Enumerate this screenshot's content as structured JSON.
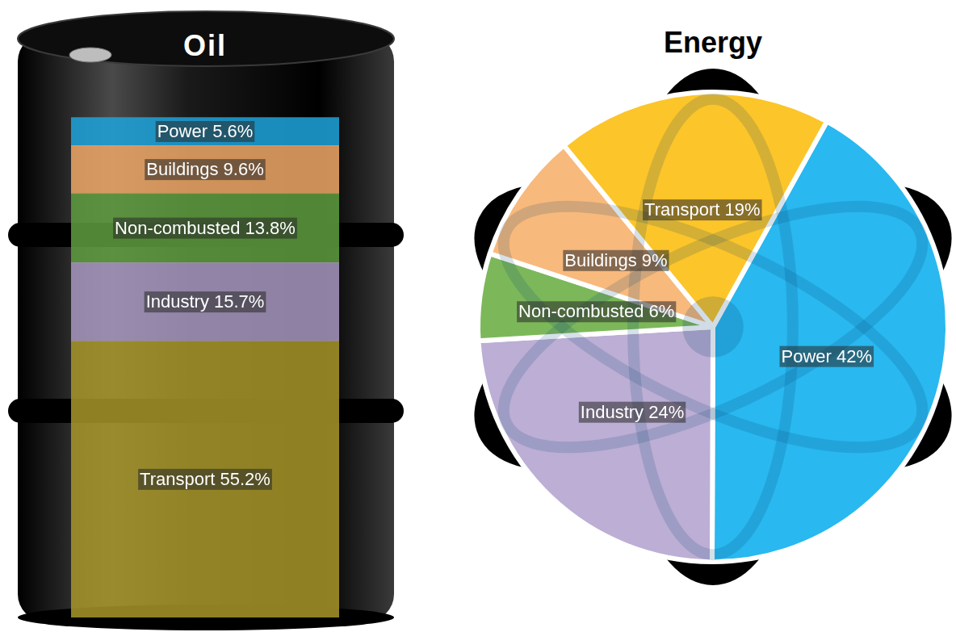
{
  "chart_data": [
    {
      "type": "bar",
      "title": "Oil",
      "categories": [
        null
      ],
      "stacked": true,
      "data_labels": true,
      "tick_labels": false,
      "grid": false,
      "ylim": [
        0,
        100
      ],
      "series": [
        {
          "name": "Transport",
          "color": "#a8962a",
          "values": [
            55.2
          ],
          "value_labels": [
            "Transport 55.2%"
          ]
        },
        {
          "name": "Industry",
          "color": "#a898c0",
          "values": [
            15.7
          ],
          "value_labels": [
            "Industry 15.7%"
          ]
        },
        {
          "name": "Non-combusted",
          "color": "#5e9e3e",
          "values": [
            13.8
          ],
          "value_labels": [
            "Non-combusted 13.8%"
          ]
        },
        {
          "name": "Buildings",
          "color": "#eea866",
          "values": [
            9.6
          ],
          "value_labels": [
            "Buildings 9.6%"
          ]
        },
        {
          "name": "Power",
          "color": "#1fa4dc",
          "values": [
            5.6
          ],
          "value_labels": [
            "Power 5.6%"
          ]
        }
      ]
    },
    {
      "type": "pie",
      "title": "Energy",
      "data_labels": true,
      "categories": [
        "Power",
        "Industry",
        "Non-combusted",
        "Buildings",
        "Transport"
      ],
      "values": [
        42,
        24,
        6,
        9,
        19
      ],
      "value_labels": [
        "Power 42%",
        "Industry 24%",
        "Non-combusted 6%",
        "Buildings 9%",
        "Transport 19%"
      ],
      "colors": [
        "#29b8f0",
        "#bcaed4",
        "#7cb85a",
        "#f8b97c",
        "#fcc52a"
      ]
    }
  ]
}
